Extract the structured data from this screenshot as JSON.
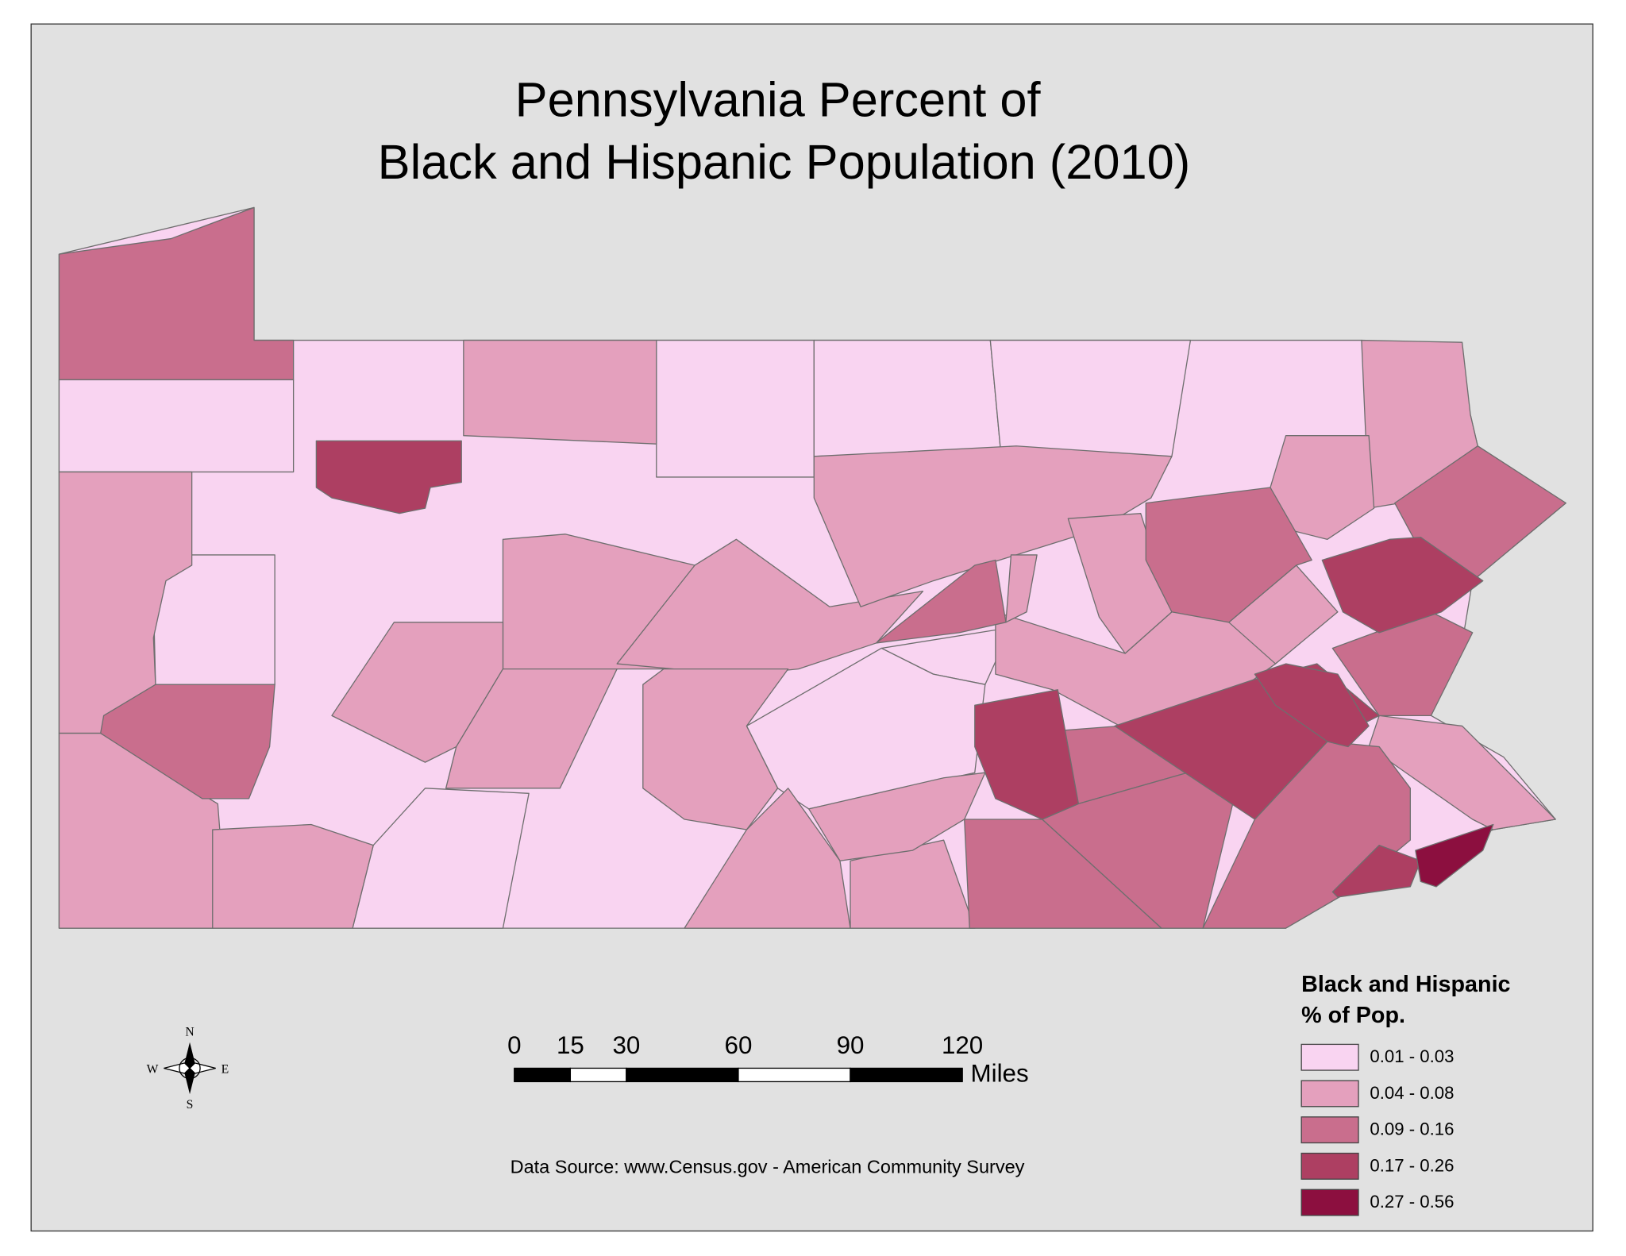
{
  "title": [
    "Pennsylvania Percent of",
    "Black and Hispanic Population (2010)"
  ],
  "legend": {
    "title": [
      "Black and Hispanic",
      "% of Pop."
    ],
    "items": [
      {
        "label": "0.01 - 0.03",
        "color": "#f9d4f1"
      },
      {
        "label": "0.04 - 0.08",
        "color": "#e4a0bd"
      },
      {
        "label": "0.09 - 0.16",
        "color": "#c96e8d"
      },
      {
        "label": "0.17 - 0.26",
        "color": "#ad3f62"
      },
      {
        "label": "0.27 - 0.56",
        "color": "#8c0f3f"
      }
    ]
  },
  "scale_bar": {
    "ticks": [
      0,
      15,
      30,
      60,
      90,
      120
    ],
    "unit": "Miles"
  },
  "compass": {
    "n": "N",
    "s": "S",
    "e": "E",
    "w": "W"
  },
  "source": "Data Source: www.Census.gov - American Community Survey"
}
